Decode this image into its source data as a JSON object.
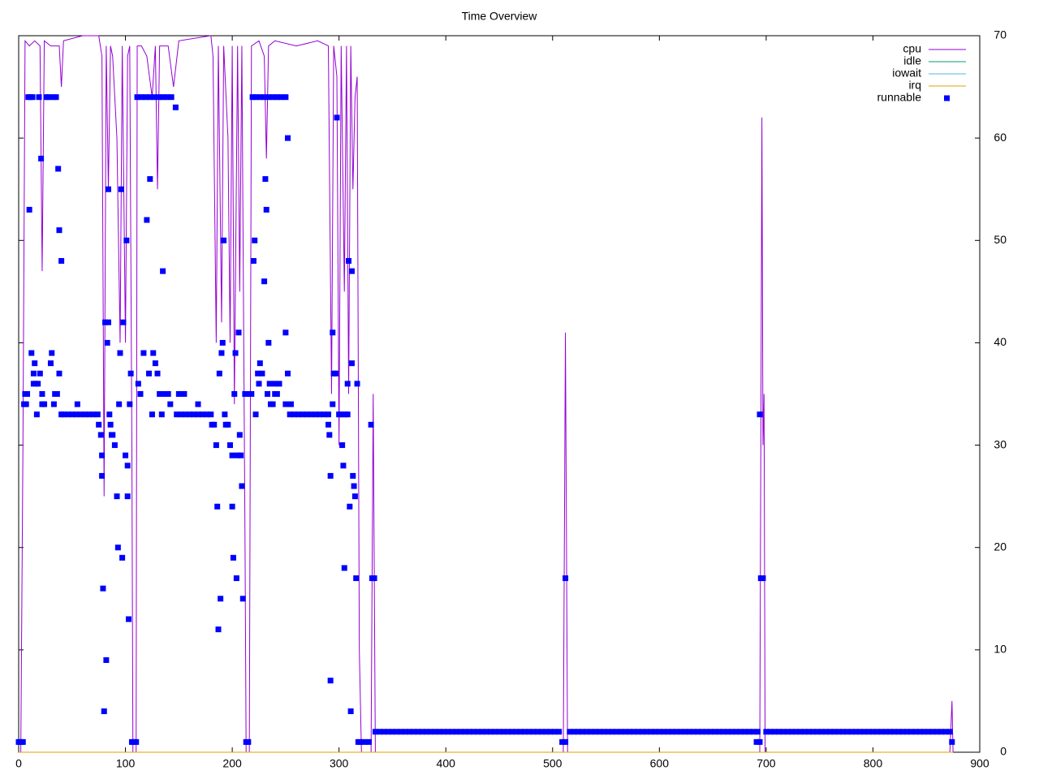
{
  "chart_data": {
    "type": "line",
    "title": "Time Overview",
    "xlim": [
      0,
      900
    ],
    "xticks": [
      0,
      100,
      200,
      300,
      400,
      500,
      600,
      700,
      800,
      900
    ],
    "ylim": [
      0,
      70
    ],
    "yticks": [
      0,
      10,
      20,
      30,
      40,
      50,
      60,
      70
    ],
    "y_axis_side": "right",
    "grid": false,
    "legend": "top-right",
    "series": [
      {
        "name": "cpu",
        "color": "#9400d3",
        "type": "line",
        "x": [
          0,
          2,
          4,
          6,
          10,
          15,
          20,
          22,
          24,
          30,
          38,
          40,
          42,
          60,
          75,
          78,
          80,
          82,
          84,
          86,
          88,
          92,
          95,
          97,
          100,
          102,
          104,
          106,
          107,
          110,
          111,
          115,
          120,
          125,
          128,
          130,
          132,
          140,
          145,
          150,
          180,
          182,
          185,
          187,
          190,
          192,
          196,
          198,
          200,
          202,
          205,
          207,
          209,
          212,
          213,
          216,
          218,
          225,
          230,
          232,
          234,
          240,
          260,
          280,
          290,
          293,
          295,
          298,
          300,
          302,
          305,
          307,
          309,
          311,
          313,
          315,
          317,
          319,
          321,
          330,
          332,
          334,
          510,
          511,
          512,
          514,
          694,
          695,
          696,
          697,
          698,
          699,
          872,
          874,
          875
        ],
        "values": [
          0,
          0,
          30,
          69.5,
          69,
          69.5,
          69,
          47,
          69.5,
          69,
          69,
          65,
          69.5,
          70,
          70,
          68,
          25,
          69,
          55,
          69,
          68,
          60,
          40,
          69,
          40,
          68,
          69,
          30,
          0,
          0,
          69,
          69,
          68,
          64,
          69,
          55,
          69,
          69,
          65,
          69.5,
          70,
          68,
          40,
          69,
          42,
          69,
          60,
          40,
          69,
          34,
          69,
          45,
          69,
          20,
          0,
          0,
          69,
          69.5,
          68,
          58,
          69,
          69.5,
          69,
          69.5,
          69,
          35,
          69,
          66,
          30,
          69,
          45,
          69,
          35,
          69,
          55,
          64,
          66,
          10,
          0,
          0,
          35,
          0,
          0,
          20,
          41,
          0,
          0,
          30,
          62,
          30,
          35,
          0,
          0,
          5,
          0
        ]
      },
      {
        "name": "idle",
        "color": "#009e73",
        "type": "line",
        "x": [
          0,
          875
        ],
        "values": [
          0,
          0
        ]
      },
      {
        "name": "iowait",
        "color": "#56b4e9",
        "type": "line",
        "x": [
          0,
          875
        ],
        "values": [
          0,
          0
        ]
      },
      {
        "name": "irq",
        "color": "#e69f00",
        "type": "line",
        "x": [
          0,
          875
        ],
        "values": [
          0,
          0
        ]
      },
      {
        "name": "runnable",
        "color": "#0000ff",
        "type": "scatter",
        "x": [
          0,
          2,
          4,
          5,
          6,
          7,
          8,
          9,
          10,
          11,
          12,
          13,
          14,
          14,
          15,
          16,
          17,
          18,
          19,
          20,
          21,
          22,
          22,
          24,
          26,
          28,
          30,
          31,
          32,
          33,
          34,
          35,
          36,
          37,
          38,
          38,
          40,
          40,
          42,
          46,
          50,
          54,
          55,
          58,
          62,
          66,
          70,
          74,
          75,
          77,
          78,
          78,
          79,
          80,
          81,
          82,
          83,
          84,
          84,
          85,
          86,
          87,
          88,
          90,
          92,
          93,
          94,
          95,
          96,
          97,
          98,
          100,
          101,
          102,
          102,
          103,
          104,
          105,
          106,
          108,
          110,
          111,
          112,
          114,
          115,
          117,
          119,
          120,
          122,
          123,
          123,
          125,
          126,
          127,
          128,
          130,
          131,
          132,
          134,
          135,
          135,
          137,
          139,
          140,
          142,
          143,
          147,
          148,
          150,
          152,
          155,
          156,
          160,
          164,
          168,
          168,
          172,
          176,
          180,
          181,
          183,
          185,
          186,
          187,
          188,
          189,
          190,
          191,
          192,
          193,
          194,
          196,
          198,
          200,
          200,
          201,
          202,
          203,
          204,
          205,
          206,
          207,
          208,
          209,
          210,
          212,
          213,
          215,
          216,
          218,
          219,
          220,
          221,
          222,
          222,
          224,
          225,
          226,
          226,
          228,
          230,
          230,
          231,
          232,
          233,
          234,
          234,
          235,
          236,
          238,
          238,
          240,
          240,
          242,
          242,
          244,
          246,
          250,
          250,
          250,
          252,
          252,
          254,
          255,
          258,
          262,
          266,
          270,
          274,
          278,
          282,
          286,
          290,
          290,
          291,
          292,
          292,
          294,
          294,
          295,
          297,
          298,
          300,
          302,
          303,
          304,
          305,
          306,
          308,
          308,
          309,
          310,
          311,
          312,
          312,
          313,
          314,
          315,
          316,
          317,
          318,
          320,
          324,
          328,
          330,
          331,
          333,
          334,
          338,
          342,
          346,
          350,
          354,
          358,
          362,
          366,
          370,
          374,
          378,
          382,
          386,
          390,
          394,
          398,
          402,
          406,
          410,
          414,
          418,
          422,
          426,
          430,
          434,
          438,
          442,
          446,
          450,
          454,
          458,
          462,
          466,
          470,
          474,
          478,
          482,
          486,
          490,
          494,
          498,
          502,
          506,
          509,
          512,
          512,
          516,
          520,
          524,
          528,
          532,
          536,
          540,
          544,
          548,
          552,
          556,
          560,
          564,
          568,
          572,
          576,
          580,
          584,
          588,
          592,
          596,
          600,
          604,
          608,
          612,
          616,
          620,
          624,
          628,
          632,
          636,
          640,
          644,
          648,
          652,
          656,
          660,
          664,
          668,
          672,
          676,
          680,
          684,
          688,
          692,
          691,
          694,
          694,
          695,
          697,
          700,
          704,
          708,
          712,
          716,
          720,
          724,
          728,
          732,
          736,
          740,
          744,
          748,
          752,
          756,
          760,
          764,
          768,
          772,
          776,
          780,
          784,
          788,
          792,
          796,
          800,
          804,
          808,
          812,
          816,
          820,
          824,
          828,
          832,
          836,
          840,
          844,
          848,
          852,
          856,
          860,
          864,
          868,
          872,
          874
        ],
        "values": [
          1,
          1,
          1,
          34,
          35,
          34,
          35,
          64,
          53,
          64,
          39,
          64,
          36,
          37,
          38,
          36,
          33,
          36,
          64,
          37,
          58,
          34,
          35,
          34,
          64,
          64,
          38,
          39,
          64,
          34,
          35,
          64,
          35,
          57,
          51,
          37,
          48,
          33,
          33,
          33,
          33,
          33,
          34,
          33,
          33,
          33,
          33,
          33,
          32,
          31,
          29,
          27,
          16,
          4,
          42,
          9,
          40,
          55,
          42,
          33,
          32,
          31,
          31,
          30,
          25,
          20,
          34,
          39,
          55,
          19,
          42,
          29,
          50,
          25,
          28,
          13,
          34,
          37,
          1,
          1,
          1,
          64,
          36,
          35,
          64,
          39,
          64,
          52,
          37,
          64,
          56,
          33,
          39,
          64,
          38,
          37,
          64,
          35,
          33,
          64,
          47,
          35,
          64,
          35,
          34,
          64,
          63,
          33,
          35,
          33,
          35,
          33,
          33,
          33,
          33,
          34,
          33,
          33,
          33,
          32,
          32,
          30,
          24,
          12,
          37,
          15,
          39,
          40,
          50,
          33,
          32,
          32,
          30,
          24,
          29,
          19,
          35,
          39,
          17,
          29,
          41,
          31,
          29,
          26,
          15,
          35,
          1,
          1,
          35,
          35,
          64,
          48,
          50,
          64,
          33,
          37,
          36,
          64,
          38,
          37,
          64,
          46,
          56,
          53,
          35,
          64,
          40,
          36,
          34,
          64,
          34,
          36,
          35,
          64,
          35,
          36,
          64,
          64,
          41,
          34,
          37,
          60,
          33,
          34,
          33,
          33,
          33,
          33,
          33,
          33,
          33,
          33,
          33,
          32,
          31,
          27,
          7,
          41,
          34,
          37,
          37,
          62,
          33,
          33,
          30,
          28,
          18,
          33,
          33,
          36,
          48,
          24,
          4,
          47,
          38,
          27,
          26,
          25,
          17,
          36,
          1,
          1,
          1,
          1,
          32,
          17,
          17,
          2,
          2,
          2,
          2,
          2,
          2,
          2,
          2,
          2,
          2,
          2,
          2,
          2,
          2,
          2,
          2,
          2,
          2,
          2,
          2,
          2,
          2,
          2,
          2,
          2,
          2,
          2,
          2,
          2,
          2,
          2,
          2,
          2,
          2,
          2,
          2,
          2,
          2,
          2,
          2,
          2,
          2,
          2,
          2,
          1,
          1,
          17,
          2,
          2,
          2,
          2,
          2,
          2,
          2,
          2,
          2,
          2,
          2,
          2,
          2,
          2,
          2,
          2,
          2,
          2,
          2,
          2,
          2,
          2,
          2,
          2,
          2,
          2,
          2,
          2,
          2,
          2,
          2,
          2,
          2,
          2,
          2,
          2,
          2,
          2,
          2,
          2,
          2,
          2,
          2,
          2,
          2,
          1,
          1,
          33,
          17,
          17,
          2,
          2,
          2,
          2,
          2,
          2,
          2,
          2,
          2,
          2,
          2,
          2,
          2,
          2,
          2,
          2,
          2,
          2,
          2,
          2,
          2,
          2,
          2,
          2,
          2,
          2,
          2,
          2,
          2,
          2,
          2,
          2,
          2,
          2,
          2,
          2,
          2,
          2,
          2,
          2,
          2,
          2,
          2,
          2,
          1
        ]
      }
    ]
  }
}
